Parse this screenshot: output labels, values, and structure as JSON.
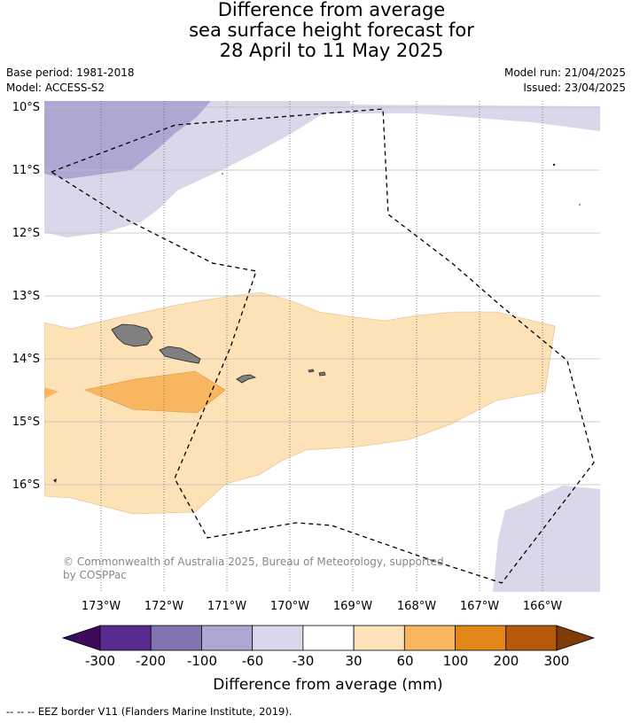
{
  "title": {
    "line1": "Difference from average",
    "line2": "sea surface height forecast for",
    "line3": "28 April to 11 May 2025"
  },
  "meta_left": {
    "base_period": "Base period: 1981-2018",
    "model": "Model: ACCESS-S2"
  },
  "meta_right": {
    "model_run": "Model run: 21/04/2025",
    "issued": "Issued: 23/04/2025"
  },
  "map": {
    "lat_labels": [
      "10°S",
      "11°S",
      "12°S",
      "13°S",
      "14°S",
      "15°S",
      "16°S"
    ],
    "lon_labels": [
      "173°W",
      "172°W",
      "171°W",
      "170°W",
      "169°W",
      "168°W",
      "167°W",
      "166°W"
    ],
    "copyright_line1": "© Commonwealth of Australia 2025, Bureau of Meteorology, supported",
    "copyright_line2": "by COSPPac",
    "eez_line_style": "dashed"
  },
  "colorbar": {
    "tick_labels": [
      "-300",
      "-200",
      "-100",
      "-60",
      "-30",
      "30",
      "60",
      "100",
      "200",
      "300"
    ],
    "colors": [
      "#3f0a5c",
      "#5b2a8f",
      "#8172b0",
      "#aea7d1",
      "#d9d8ea",
      "#ffffff",
      "#fde1b7",
      "#f9b660",
      "#e3861a",
      "#b65a0a",
      "#7f3b08"
    ],
    "label": "Difference from average (mm)"
  },
  "footnote": "--  --  -- EEZ border V11 (Flanders Marine Institute, 2019)."
}
